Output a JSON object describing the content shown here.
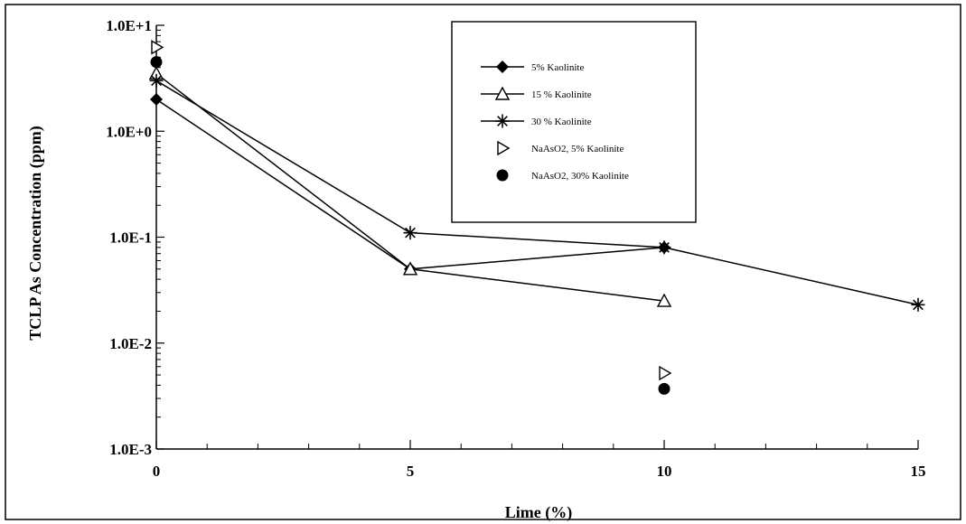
{
  "chart_data": {
    "type": "line",
    "title": "",
    "xlabel": "Lime (%)",
    "ylabel": "TCLP  As Concentration (ppm)",
    "xlim": [
      0,
      15
    ],
    "ylim": [
      0.001,
      10
    ],
    "yscale": "log",
    "x_ticks": [
      0,
      5,
      10,
      15
    ],
    "x_tick_labels": [
      "0",
      "5",
      "10",
      "15"
    ],
    "y_ticks": [
      10,
      1,
      0.1,
      0.01,
      0.001
    ],
    "y_tick_labels": [
      "1.0E+1",
      "1.0E+0",
      "1.0E-1",
      "1.0E-2",
      "1.0E-3"
    ],
    "grid": false,
    "legend_position": "top-center",
    "series": [
      {
        "name": "5%  Kaolinite",
        "marker": "diamond",
        "line": true,
        "points": [
          [
            0,
            2.0
          ],
          [
            5,
            0.05
          ],
          [
            10,
            0.08
          ]
        ]
      },
      {
        "name": "15 % Kaolinite",
        "marker": "triangle-open",
        "line": true,
        "points": [
          [
            0,
            3.5
          ],
          [
            5,
            0.05
          ],
          [
            10,
            0.025
          ]
        ]
      },
      {
        "name": "30 % Kaolinite",
        "marker": "asterisk",
        "line": true,
        "points": [
          [
            0,
            3.0
          ],
          [
            5,
            0.11
          ],
          [
            10,
            0.08
          ],
          [
            15,
            0.023
          ]
        ]
      },
      {
        "name": "NaAsO2, 5% Kaolinite",
        "marker": "triangle-right-open",
        "line": false,
        "points": [
          [
            0,
            6.2
          ],
          [
            10,
            0.0052
          ]
        ]
      },
      {
        "name": "NaAsO2, 30% Kaolinite",
        "marker": "circle",
        "line": false,
        "points": [
          [
            0,
            4.5
          ],
          [
            10,
            0.0037
          ]
        ]
      }
    ]
  }
}
